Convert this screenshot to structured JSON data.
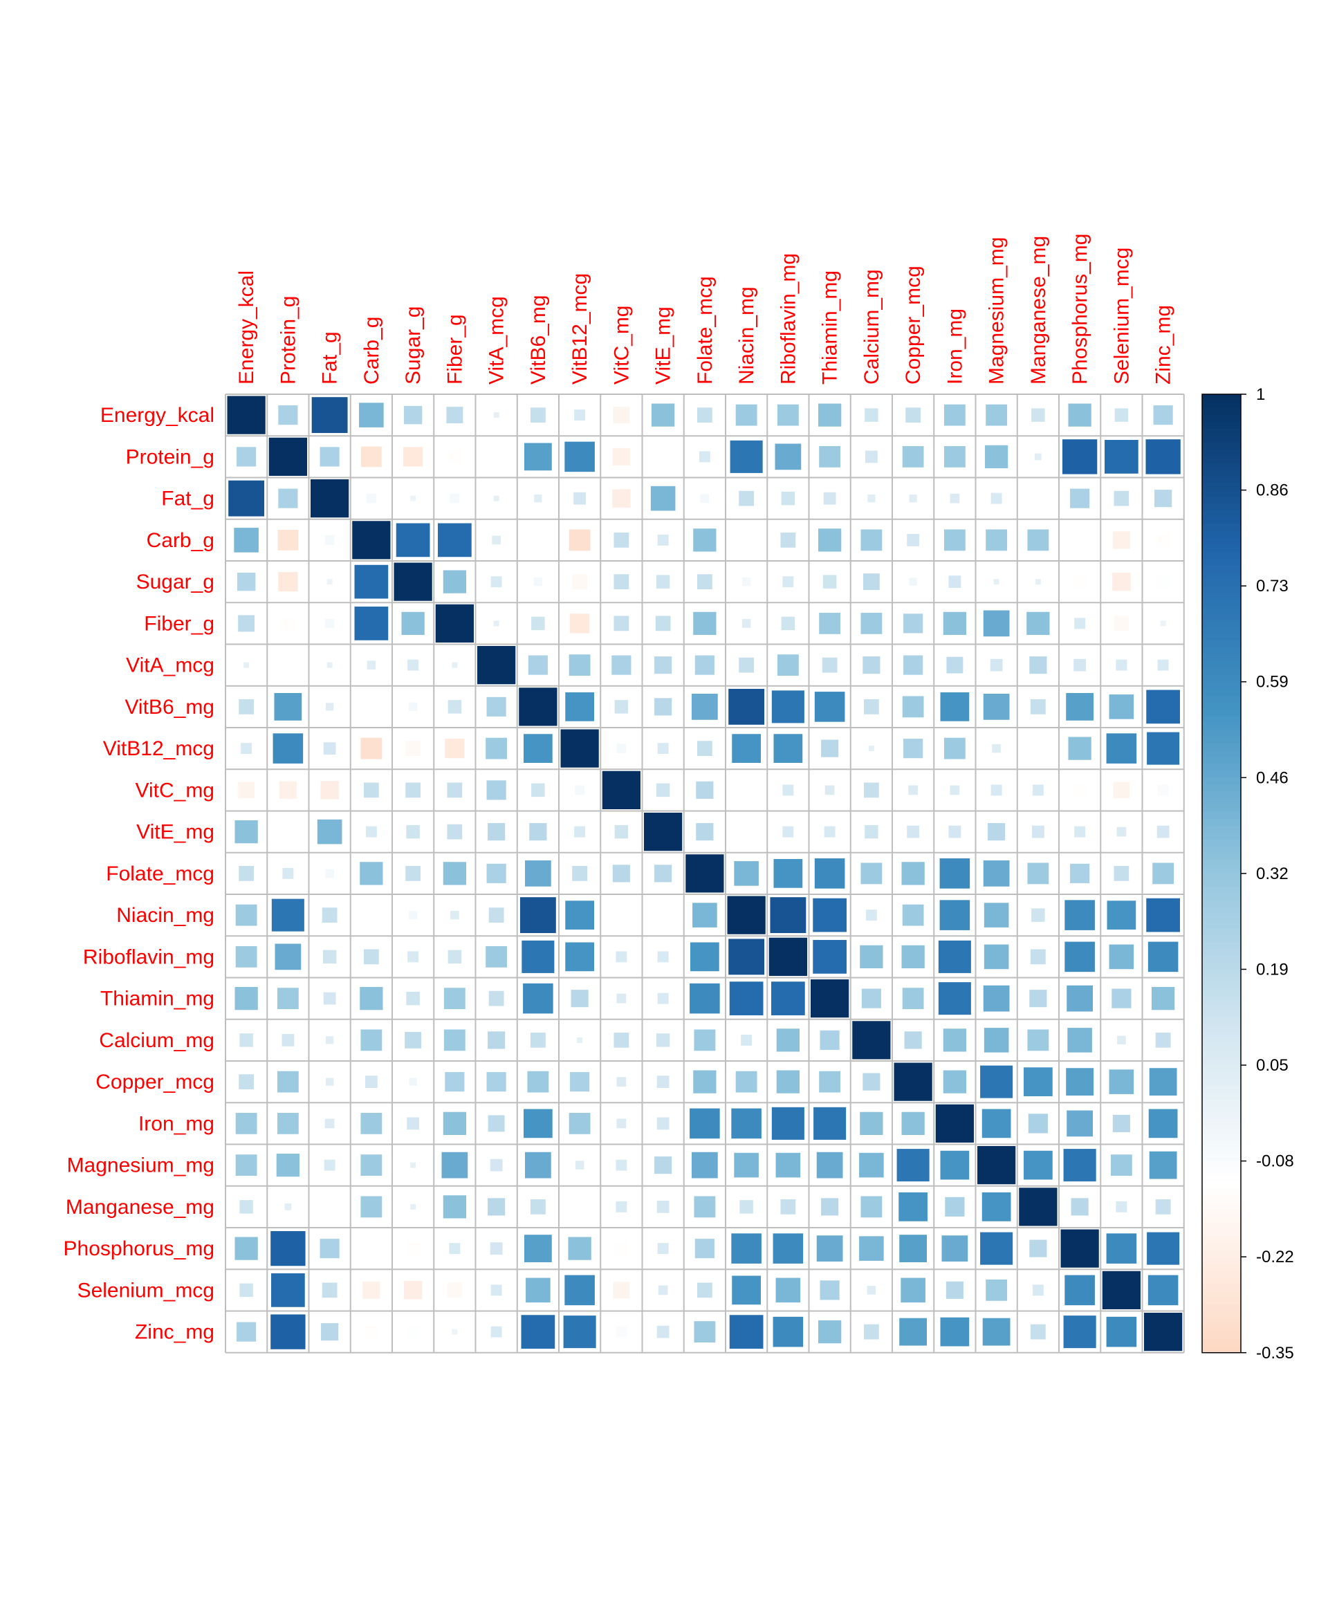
{
  "chart_data": {
    "type": "heatmap",
    "title": "",
    "variables": [
      "Energy_kcal",
      "Protein_g",
      "Fat_g",
      "Carb_g",
      "Sugar_g",
      "Fiber_g",
      "VitA_mcg",
      "VitB6_mg",
      "VitB12_mcg",
      "VitC_mg",
      "VitE_mg",
      "Folate_mcg",
      "Niacin_mg",
      "Riboflavin_mg",
      "Thiamin_mg",
      "Calcium_mg",
      "Copper_mcg",
      "Iron_mg",
      "Magnesium_mg",
      "Manganese_mg",
      "Phosphorus_mg",
      "Selenium_mcg",
      "Zinc_mg"
    ],
    "matrix": [
      [
        1,
        0.25,
        0.85,
        0.4,
        0.22,
        0.18,
        0.02,
        0.15,
        0.08,
        -0.18,
        0.35,
        0.15,
        0.3,
        0.3,
        0.35,
        0.12,
        0.15,
        0.3,
        0.3,
        0.12,
        0.35,
        0.12,
        0.25
      ],
      [
        0.25,
        1,
        0.25,
        -0.28,
        -0.25,
        -0.12,
        0.0,
        0.5,
        0.6,
        -0.2,
        0.0,
        0.08,
        0.7,
        0.45,
        0.3,
        0.1,
        0.3,
        0.3,
        0.35,
        0.03,
        0.8,
        0.75,
        0.8
      ],
      [
        0.85,
        0.25,
        1,
        -0.06,
        -0.02,
        -0.06,
        0.02,
        0.04,
        0.1,
        -0.22,
        0.4,
        -0.05,
        0.15,
        0.12,
        0.1,
        0.04,
        0.04,
        0.06,
        0.08,
        0.0,
        0.25,
        0.15,
        0.2
      ],
      [
        0.4,
        -0.28,
        -0.06,
        1,
        0.75,
        0.75,
        0.05,
        0.0,
        -0.3,
        0.15,
        0.08,
        0.35,
        0.0,
        0.15,
        0.35,
        0.3,
        0.1,
        0.3,
        0.3,
        0.3,
        0.0,
        -0.2,
        -0.12
      ],
      [
        0.22,
        -0.25,
        -0.02,
        0.75,
        1,
        0.35,
        0.08,
        -0.05,
        -0.15,
        0.15,
        0.12,
        0.15,
        -0.05,
        0.08,
        0.12,
        0.18,
        -0.04,
        0.1,
        0.02,
        0.02,
        -0.12,
        -0.22,
        -0.1
      ],
      [
        0.18,
        -0.12,
        -0.06,
        0.75,
        0.35,
        1,
        0.02,
        0.12,
        -0.25,
        0.15,
        0.15,
        0.35,
        0.05,
        0.12,
        0.3,
        0.3,
        0.25,
        0.35,
        0.45,
        0.35,
        0.08,
        -0.15,
        -0.02
      ],
      [
        0.02,
        0.0,
        0.02,
        0.05,
        0.08,
        0.02,
        1,
        0.25,
        0.3,
        0.25,
        0.2,
        0.25,
        0.15,
        0.3,
        0.15,
        0.2,
        0.25,
        0.18,
        0.1,
        0.2,
        0.1,
        0.08,
        0.08
      ],
      [
        0.15,
        0.5,
        0.04,
        0.0,
        -0.05,
        0.12,
        0.25,
        1,
        0.55,
        0.12,
        0.2,
        0.45,
        0.85,
        0.7,
        0.6,
        0.15,
        0.3,
        0.55,
        0.45,
        0.15,
        0.5,
        0.4,
        0.75
      ],
      [
        0.08,
        0.6,
        0.1,
        -0.3,
        -0.15,
        -0.25,
        0.3,
        0.55,
        1,
        -0.06,
        0.08,
        0.15,
        0.55,
        0.55,
        0.2,
        0.02,
        0.25,
        0.3,
        0.05,
        0.0,
        0.35,
        0.6,
        0.7
      ],
      [
        -0.18,
        -0.2,
        -0.22,
        0.15,
        0.15,
        0.15,
        0.25,
        0.12,
        -0.06,
        1,
        0.12,
        0.2,
        0.0,
        0.08,
        0.06,
        0.15,
        0.06,
        0.06,
        0.08,
        0.08,
        -0.12,
        -0.18,
        -0.08
      ],
      [
        0.35,
        0.0,
        0.4,
        0.08,
        0.12,
        0.15,
        0.2,
        0.2,
        0.08,
        0.12,
        1,
        0.2,
        0.0,
        0.08,
        0.08,
        0.12,
        0.1,
        0.1,
        0.2,
        0.1,
        0.08,
        0.06,
        0.1
      ],
      [
        0.15,
        0.08,
        -0.05,
        0.35,
        0.15,
        0.35,
        0.25,
        0.45,
        0.15,
        0.2,
        0.2,
        1,
        0.4,
        0.55,
        0.6,
        0.3,
        0.35,
        0.6,
        0.45,
        0.3,
        0.25,
        0.15,
        0.3
      ],
      [
        0.3,
        0.7,
        0.15,
        0.0,
        -0.05,
        0.05,
        0.15,
        0.85,
        0.55,
        0.0,
        0.0,
        0.4,
        1,
        0.85,
        0.75,
        0.08,
        0.3,
        0.6,
        0.4,
        0.12,
        0.6,
        0.55,
        0.75
      ],
      [
        0.3,
        0.45,
        0.12,
        0.15,
        0.08,
        0.12,
        0.3,
        0.7,
        0.55,
        0.08,
        0.08,
        0.55,
        0.85,
        1,
        0.75,
        0.35,
        0.35,
        0.7,
        0.4,
        0.15,
        0.6,
        0.4,
        0.6
      ],
      [
        0.35,
        0.3,
        0.1,
        0.35,
        0.12,
        0.3,
        0.15,
        0.6,
        0.2,
        0.06,
        0.08,
        0.6,
        0.75,
        0.75,
        1,
        0.25,
        0.3,
        0.7,
        0.45,
        0.2,
        0.45,
        0.25,
        0.35
      ],
      [
        0.12,
        0.1,
        0.04,
        0.3,
        0.18,
        0.3,
        0.2,
        0.15,
        0.02,
        0.15,
        0.12,
        0.3,
        0.08,
        0.35,
        0.25,
        1,
        0.2,
        0.35,
        0.4,
        0.3,
        0.4,
        0.05,
        0.15
      ],
      [
        0.15,
        0.3,
        0.04,
        0.1,
        -0.04,
        0.25,
        0.25,
        0.3,
        0.25,
        0.06,
        0.1,
        0.35,
        0.3,
        0.35,
        0.3,
        0.2,
        1,
        0.35,
        0.7,
        0.55,
        0.5,
        0.4,
        0.5
      ],
      [
        0.3,
        0.3,
        0.06,
        0.3,
        0.1,
        0.35,
        0.18,
        0.55,
        0.3,
        0.06,
        0.1,
        0.6,
        0.6,
        0.7,
        0.7,
        0.35,
        0.35,
        1,
        0.55,
        0.25,
        0.45,
        0.2,
        0.55
      ],
      [
        0.3,
        0.35,
        0.08,
        0.3,
        0.02,
        0.45,
        0.1,
        0.45,
        0.05,
        0.08,
        0.2,
        0.45,
        0.4,
        0.4,
        0.45,
        0.4,
        0.7,
        0.55,
        1,
        0.55,
        0.7,
        0.3,
        0.5
      ],
      [
        0.12,
        0.03,
        0.0,
        0.3,
        0.02,
        0.35,
        0.2,
        0.15,
        0.0,
        0.08,
        0.1,
        0.3,
        0.12,
        0.15,
        0.2,
        0.3,
        0.55,
        0.25,
        0.55,
        1,
        0.2,
        0.08,
        0.15
      ],
      [
        0.35,
        0.8,
        0.25,
        0.0,
        -0.12,
        0.08,
        0.1,
        0.5,
        0.35,
        -0.12,
        0.08,
        0.25,
        0.6,
        0.6,
        0.45,
        0.4,
        0.5,
        0.45,
        0.7,
        0.2,
        1,
        0.6,
        0.7
      ],
      [
        0.12,
        0.75,
        0.15,
        -0.2,
        -0.22,
        -0.15,
        0.08,
        0.4,
        0.6,
        -0.18,
        0.06,
        0.15,
        0.55,
        0.4,
        0.25,
        0.05,
        0.4,
        0.2,
        0.3,
        0.08,
        0.6,
        1,
        0.6
      ],
      [
        0.25,
        0.8,
        0.2,
        -0.12,
        -0.1,
        -0.02,
        0.08,
        0.75,
        0.7,
        -0.08,
        0.1,
        0.3,
        0.75,
        0.6,
        0.35,
        0.15,
        0.5,
        0.55,
        0.5,
        0.15,
        0.7,
        0.6,
        1
      ]
    ],
    "colorbar": {
      "ticks": [
        "1",
        "0.86",
        "0.73",
        "0.59",
        "0.46",
        "0.32",
        "0.19",
        "0.05",
        "-0.08",
        "-0.22",
        "-0.35"
      ],
      "range": [
        -0.35,
        1
      ]
    },
    "colors": {
      "labels": "#ff0000",
      "grid": "#bebebe",
      "diverging": [
        "#b2182b",
        "#d6604d",
        "#f4a582",
        "#fddbc7",
        "#ffffff",
        "#d1e5f0",
        "#92c5de",
        "#4393c3",
        "#2166ac",
        "#053061"
      ]
    }
  }
}
